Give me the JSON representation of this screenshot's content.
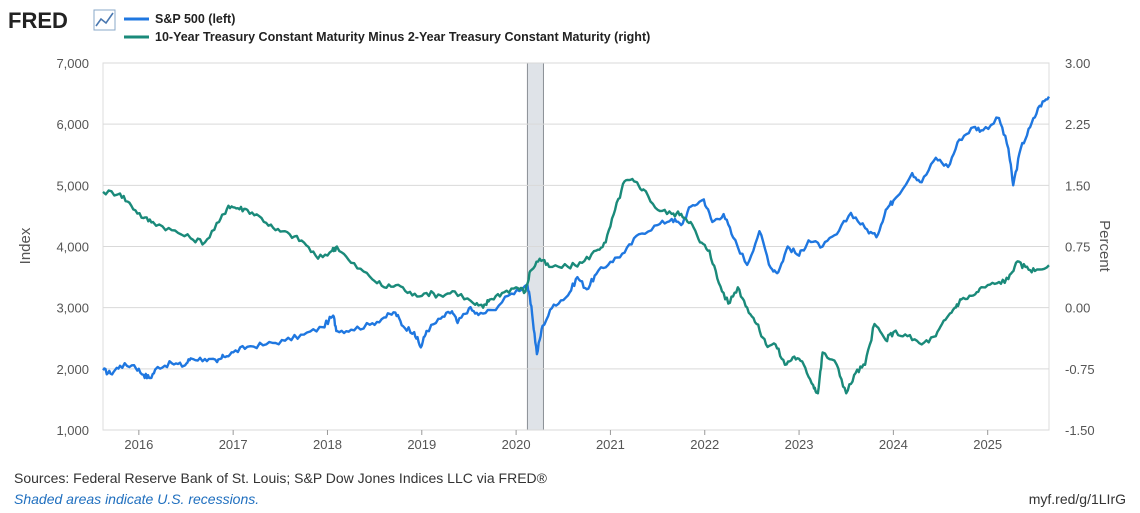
{
  "logo": {
    "text": "FRED",
    "icon": "line-chart-icon"
  },
  "legend": [
    {
      "label": "S&P 500 (left)",
      "color": "#1f77e0"
    },
    {
      "label": "10-Year Treasury Constant Maturity Minus 2-Year Treasury Constant Maturity (right)",
      "color": "#1a8a7a"
    }
  ],
  "footer": {
    "sources": "Sources: Federal Reserve Bank of St. Louis; S&P Dow Jones Indices LLC via FRED®",
    "recession_note": "Shaded areas indicate U.S. recessions.",
    "short_url": "myf.red/g/1LIrG"
  },
  "chart_data": {
    "type": "line",
    "title": "",
    "xlabel": "",
    "ylabel_left": "Index",
    "ylabel_right": "Percent",
    "xlim": [
      2015.62,
      2025.65
    ],
    "ylim_left": [
      1000,
      7000
    ],
    "ylim_right": [
      -1.5,
      3.0
    ],
    "x_ticks": [
      "2016",
      "2017",
      "2018",
      "2019",
      "2020",
      "2021",
      "2022",
      "2023",
      "2024",
      "2025"
    ],
    "y_ticks_left": [
      "1,000",
      "2,000",
      "3,000",
      "4,000",
      "5,000",
      "6,000",
      "7,000"
    ],
    "y_ticks_right": [
      "-1.50",
      "-0.75",
      "0.00",
      "0.75",
      "1.50",
      "2.25",
      "3.00"
    ],
    "grid": true,
    "recessions": [
      {
        "start": 2020.12,
        "end": 2020.29
      }
    ],
    "series": [
      {
        "name": "S&P 500 (left)",
        "axis": "left",
        "color": "#1f77e0",
        "points": [
          [
            2015.62,
            1980
          ],
          [
            2015.7,
            1920
          ],
          [
            2015.8,
            2050
          ],
          [
            2015.95,
            2060
          ],
          [
            2016.05,
            1900
          ],
          [
            2016.12,
            1850
          ],
          [
            2016.2,
            2030
          ],
          [
            2016.35,
            2090
          ],
          [
            2016.48,
            2050
          ],
          [
            2016.55,
            2170
          ],
          [
            2016.7,
            2160
          ],
          [
            2016.83,
            2110
          ],
          [
            2016.9,
            2200
          ],
          [
            2017.0,
            2270
          ],
          [
            2017.15,
            2360
          ],
          [
            2017.35,
            2400
          ],
          [
            2017.55,
            2460
          ],
          [
            2017.75,
            2560
          ],
          [
            2017.95,
            2680
          ],
          [
            2018.06,
            2870
          ],
          [
            2018.1,
            2620
          ],
          [
            2018.25,
            2640
          ],
          [
            2018.45,
            2720
          ],
          [
            2018.6,
            2840
          ],
          [
            2018.72,
            2920
          ],
          [
            2018.8,
            2700
          ],
          [
            2018.92,
            2600
          ],
          [
            2018.99,
            2350
          ],
          [
            2019.05,
            2620
          ],
          [
            2019.2,
            2820
          ],
          [
            2019.32,
            2940
          ],
          [
            2019.38,
            2750
          ],
          [
            2019.5,
            2990
          ],
          [
            2019.6,
            2880
          ],
          [
            2019.75,
            2960
          ],
          [
            2019.95,
            3230
          ],
          [
            2020.12,
            3380
          ],
          [
            2020.17,
            2900
          ],
          [
            2020.22,
            2240
          ],
          [
            2020.28,
            2700
          ],
          [
            2020.4,
            3050
          ],
          [
            2020.55,
            3200
          ],
          [
            2020.65,
            3500
          ],
          [
            2020.75,
            3300
          ],
          [
            2020.85,
            3550
          ],
          [
            2021.0,
            3750
          ],
          [
            2021.15,
            3900
          ],
          [
            2021.3,
            4200
          ],
          [
            2021.5,
            4350
          ],
          [
            2021.65,
            4450
          ],
          [
            2021.75,
            4350
          ],
          [
            2021.85,
            4650
          ],
          [
            2021.99,
            4770
          ],
          [
            2022.08,
            4400
          ],
          [
            2022.2,
            4530
          ],
          [
            2022.3,
            4150
          ],
          [
            2022.45,
            3700
          ],
          [
            2022.58,
            4250
          ],
          [
            2022.7,
            3650
          ],
          [
            2022.78,
            3580
          ],
          [
            2022.88,
            4000
          ],
          [
            2023.0,
            3850
          ],
          [
            2023.1,
            4100
          ],
          [
            2023.25,
            4000
          ],
          [
            2023.4,
            4200
          ],
          [
            2023.55,
            4550
          ],
          [
            2023.7,
            4300
          ],
          [
            2023.82,
            4150
          ],
          [
            2023.92,
            4600
          ],
          [
            2024.0,
            4750
          ],
          [
            2024.2,
            5200
          ],
          [
            2024.3,
            5050
          ],
          [
            2024.45,
            5450
          ],
          [
            2024.58,
            5300
          ],
          [
            2024.7,
            5750
          ],
          [
            2024.85,
            5950
          ],
          [
            2024.95,
            5900
          ],
          [
            2025.12,
            6100
          ],
          [
            2025.22,
            5600
          ],
          [
            2025.27,
            5000
          ],
          [
            2025.35,
            5600
          ],
          [
            2025.45,
            5950
          ],
          [
            2025.55,
            6300
          ],
          [
            2025.65,
            6450
          ]
        ]
      },
      {
        "name": "10-Year Treasury Constant Maturity Minus 2-Year Treasury Constant Maturity (right)",
        "axis": "right",
        "color": "#1a8a7a",
        "points": [
          [
            2015.62,
            1.42
          ],
          [
            2015.8,
            1.4
          ],
          [
            2015.92,
            1.25
          ],
          [
            2016.05,
            1.1
          ],
          [
            2016.15,
            1.05
          ],
          [
            2016.35,
            0.95
          ],
          [
            2016.55,
            0.85
          ],
          [
            2016.7,
            0.8
          ],
          [
            2016.85,
            1.05
          ],
          [
            2016.95,
            1.25
          ],
          [
            2017.05,
            1.22
          ],
          [
            2017.15,
            1.2
          ],
          [
            2017.3,
            1.1
          ],
          [
            2017.45,
            0.95
          ],
          [
            2017.6,
            0.9
          ],
          [
            2017.75,
            0.8
          ],
          [
            2017.9,
            0.6
          ],
          [
            2018.05,
            0.7
          ],
          [
            2018.1,
            0.75
          ],
          [
            2018.25,
            0.55
          ],
          [
            2018.45,
            0.38
          ],
          [
            2018.6,
            0.25
          ],
          [
            2018.75,
            0.28
          ],
          [
            2018.9,
            0.15
          ],
          [
            2019.05,
            0.18
          ],
          [
            2019.2,
            0.15
          ],
          [
            2019.35,
            0.2
          ],
          [
            2019.55,
            0.05
          ],
          [
            2019.65,
            0.0
          ],
          [
            2019.72,
            0.1
          ],
          [
            2019.85,
            0.18
          ],
          [
            2020.0,
            0.25
          ],
          [
            2020.1,
            0.2
          ],
          [
            2020.15,
            0.45
          ],
          [
            2020.25,
            0.6
          ],
          [
            2020.35,
            0.5
          ],
          [
            2020.55,
            0.5
          ],
          [
            2020.7,
            0.55
          ],
          [
            2020.85,
            0.7
          ],
          [
            2020.95,
            0.8
          ],
          [
            2021.05,
            1.2
          ],
          [
            2021.15,
            1.55
          ],
          [
            2021.25,
            1.55
          ],
          [
            2021.35,
            1.45
          ],
          [
            2021.5,
            1.2
          ],
          [
            2021.65,
            1.15
          ],
          [
            2021.75,
            1.15
          ],
          [
            2021.85,
            1.05
          ],
          [
            2021.95,
            0.8
          ],
          [
            2022.05,
            0.7
          ],
          [
            2022.15,
            0.3
          ],
          [
            2022.25,
            0.05
          ],
          [
            2022.35,
            0.25
          ],
          [
            2022.45,
            0.0
          ],
          [
            2022.55,
            -0.2
          ],
          [
            2022.65,
            -0.45
          ],
          [
            2022.75,
            -0.45
          ],
          [
            2022.85,
            -0.7
          ],
          [
            2022.95,
            -0.6
          ],
          [
            2023.05,
            -0.7
          ],
          [
            2023.15,
            -0.95
          ],
          [
            2023.2,
            -1.05
          ],
          [
            2023.25,
            -0.55
          ],
          [
            2023.4,
            -0.7
          ],
          [
            2023.5,
            -1.05
          ],
          [
            2023.6,
            -0.8
          ],
          [
            2023.7,
            -0.7
          ],
          [
            2023.8,
            -0.2
          ],
          [
            2023.92,
            -0.4
          ],
          [
            2024.0,
            -0.3
          ],
          [
            2024.15,
            -0.35
          ],
          [
            2024.3,
            -0.45
          ],
          [
            2024.45,
            -0.35
          ],
          [
            2024.55,
            -0.15
          ],
          [
            2024.65,
            0.0
          ],
          [
            2024.72,
            0.1
          ],
          [
            2024.85,
            0.15
          ],
          [
            2024.95,
            0.25
          ],
          [
            2025.1,
            0.3
          ],
          [
            2025.22,
            0.35
          ],
          [
            2025.3,
            0.55
          ],
          [
            2025.4,
            0.5
          ],
          [
            2025.5,
            0.45
          ],
          [
            2025.65,
            0.52
          ]
        ]
      }
    ]
  }
}
